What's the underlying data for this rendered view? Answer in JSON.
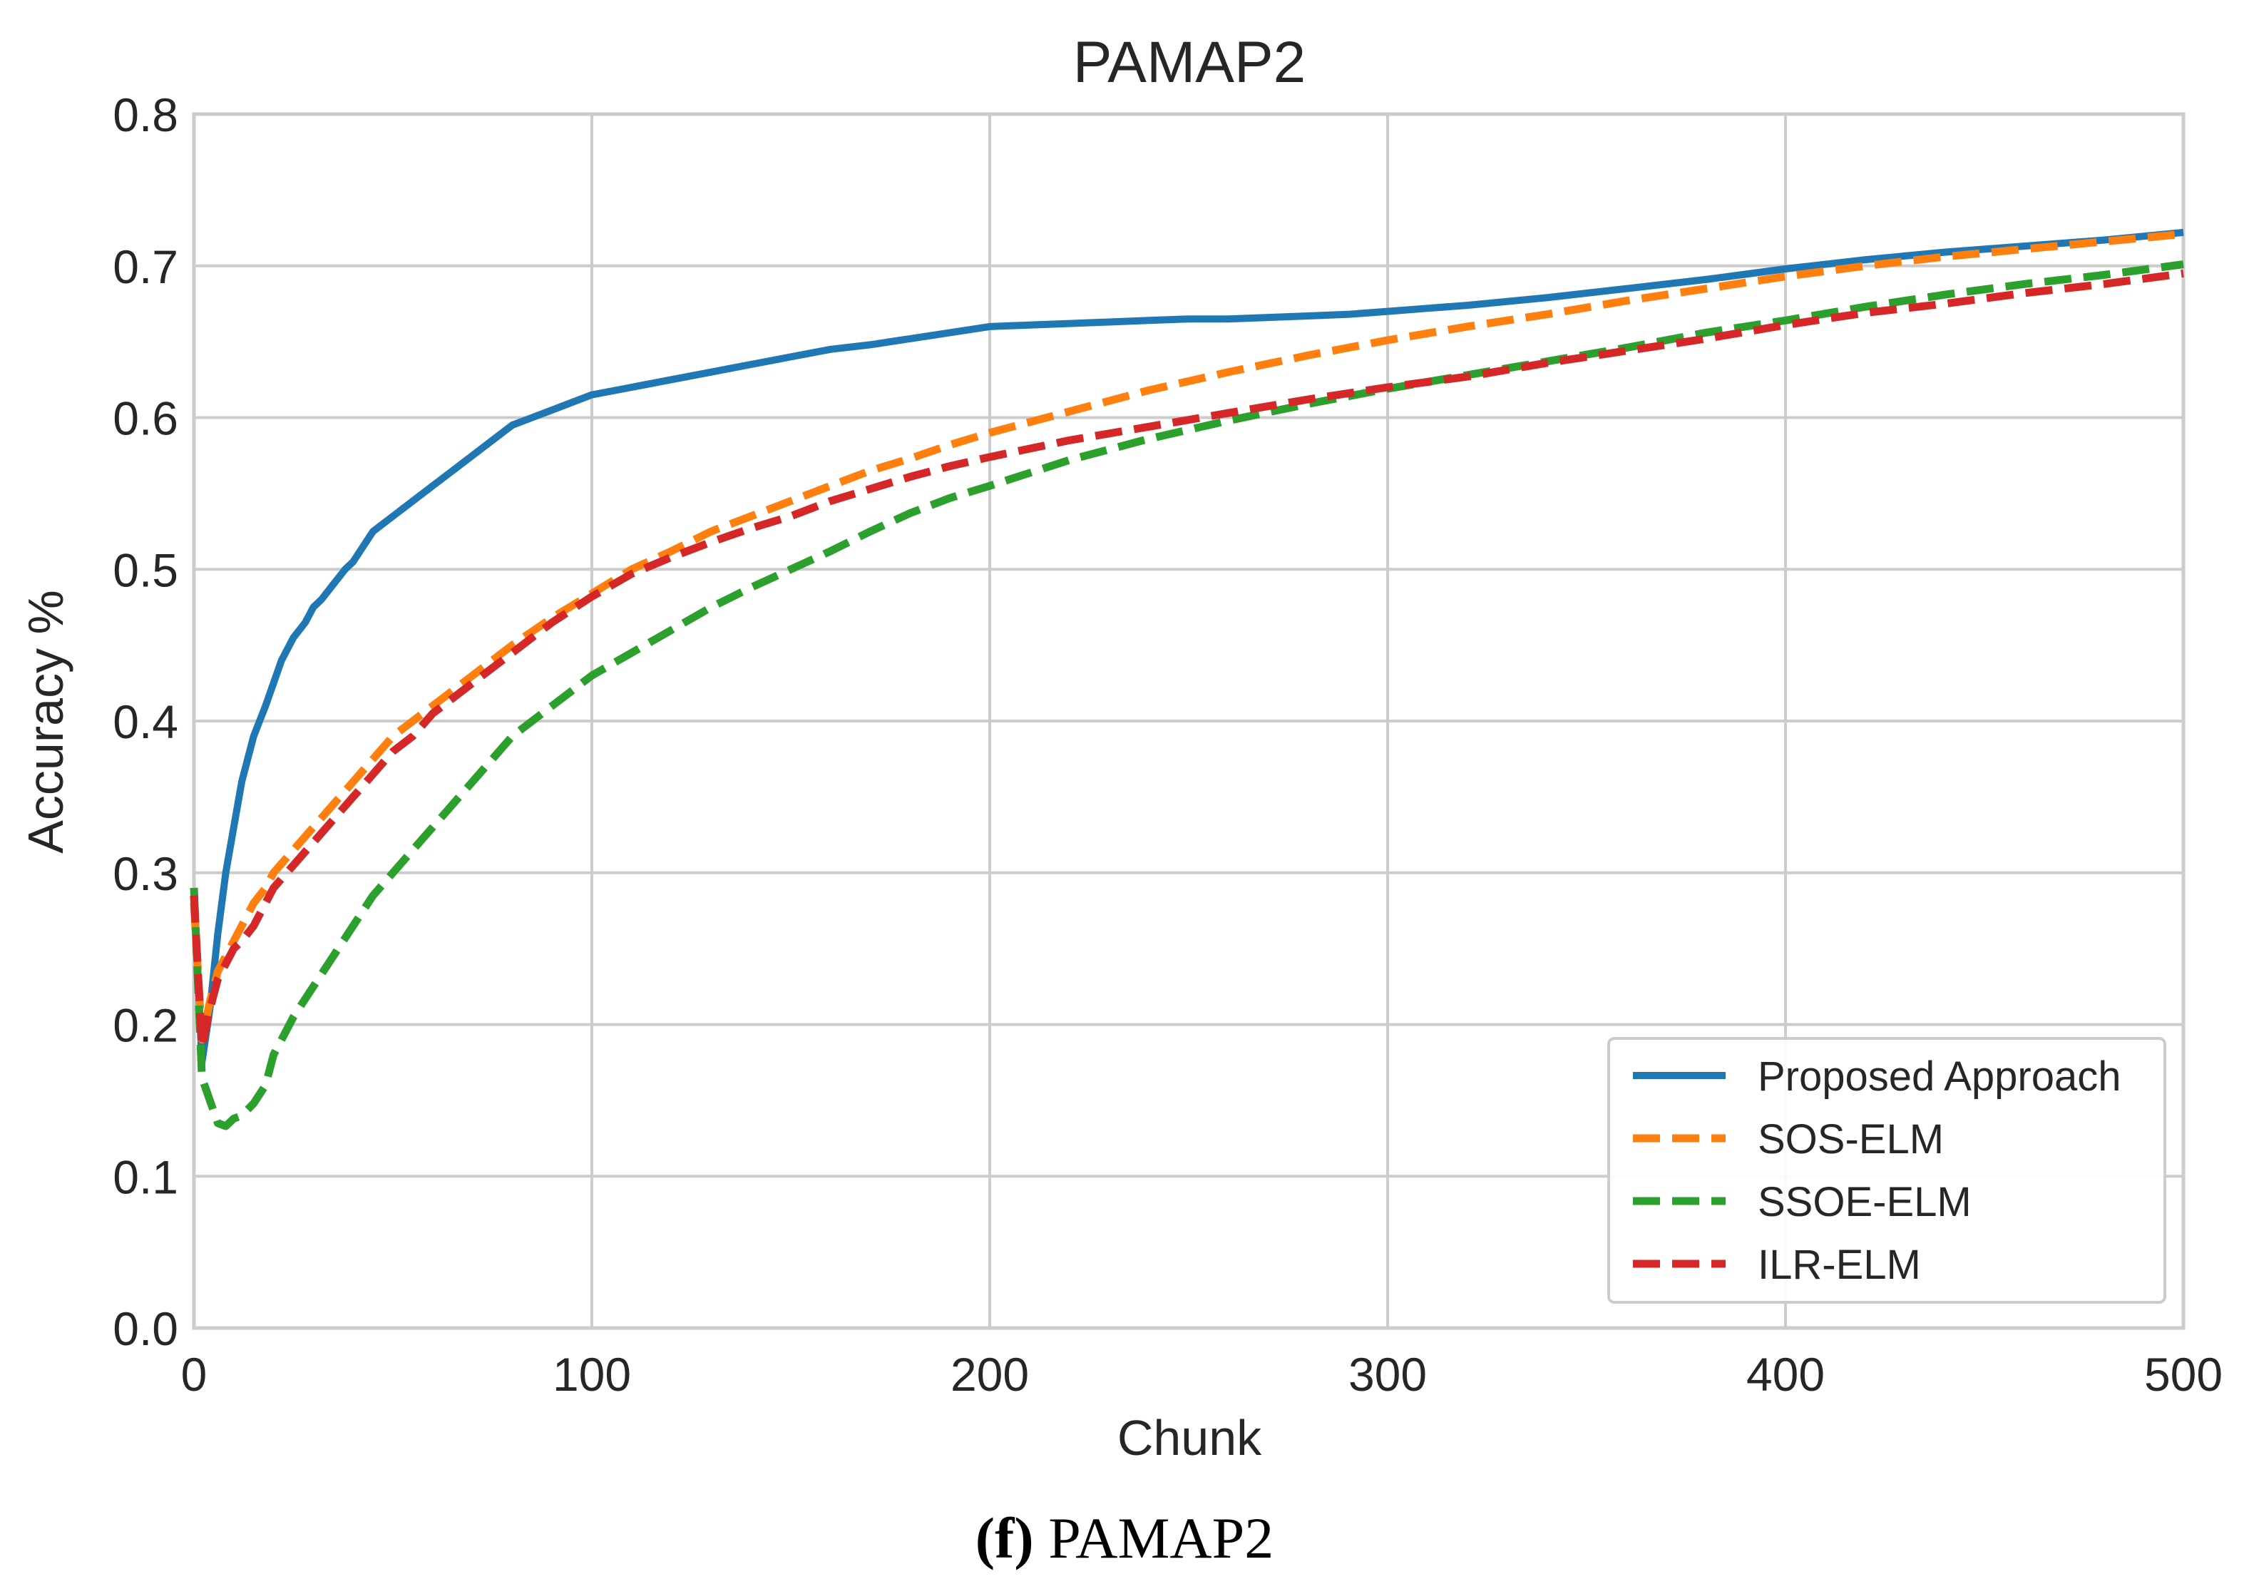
{
  "chart_data": {
    "type": "line",
    "title": "PAMAP2",
    "xlabel": "Chunk",
    "ylabel": "Accuracy %",
    "xlim": [
      0,
      500
    ],
    "ylim": [
      0.0,
      0.8
    ],
    "xticks": [
      0,
      100,
      200,
      300,
      400,
      500
    ],
    "yticks": [
      0.0,
      0.1,
      0.2,
      0.3,
      0.4,
      0.5,
      0.6,
      0.7,
      0.8
    ],
    "xtick_labels": [
      "0",
      "100",
      "200",
      "300",
      "400",
      "500"
    ],
    "ytick_labels": [
      "0.0",
      "0.1",
      "0.2",
      "0.3",
      "0.4",
      "0.5",
      "0.6",
      "0.7",
      "0.8"
    ],
    "grid": true,
    "legend_position": "bottom-right",
    "series": [
      {
        "name": "Proposed Approach",
        "color": "#1f77b4",
        "style": "solid",
        "x": [
          0,
          2,
          4,
          6,
          8,
          10,
          12,
          15,
          18,
          20,
          22,
          25,
          28,
          30,
          32,
          35,
          38,
          40,
          45,
          50,
          55,
          60,
          65,
          70,
          75,
          80,
          85,
          90,
          95,
          100,
          110,
          120,
          130,
          140,
          150,
          160,
          170,
          180,
          190,
          200,
          210,
          220,
          230,
          240,
          250,
          260,
          270,
          280,
          290,
          300,
          310,
          320,
          340,
          360,
          380,
          400,
          420,
          440,
          460,
          480,
          500
        ],
        "y": [
          0.29,
          0.175,
          0.21,
          0.26,
          0.3,
          0.33,
          0.36,
          0.39,
          0.41,
          0.425,
          0.44,
          0.455,
          0.465,
          0.475,
          0.48,
          0.49,
          0.5,
          0.505,
          0.525,
          0.535,
          0.545,
          0.555,
          0.565,
          0.575,
          0.585,
          0.595,
          0.6,
          0.605,
          0.61,
          0.615,
          0.62,
          0.625,
          0.63,
          0.635,
          0.64,
          0.645,
          0.648,
          0.652,
          0.656,
          0.66,
          0.661,
          0.662,
          0.663,
          0.664,
          0.665,
          0.665,
          0.666,
          0.667,
          0.668,
          0.67,
          0.672,
          0.674,
          0.679,
          0.685,
          0.691,
          0.698,
          0.704,
          0.709,
          0.713,
          0.717,
          0.722
        ]
      },
      {
        "name": "SOS-ELM",
        "color": "#ff7f0e",
        "style": "dashed",
        "x": [
          0,
          2,
          4,
          6,
          8,
          10,
          12,
          15,
          18,
          20,
          25,
          30,
          35,
          40,
          45,
          50,
          55,
          60,
          70,
          80,
          90,
          100,
          110,
          120,
          130,
          140,
          150,
          160,
          170,
          180,
          190,
          200,
          220,
          240,
          260,
          280,
          300,
          320,
          340,
          360,
          380,
          400,
          420,
          440,
          460,
          480,
          500
        ],
        "y": [
          0.28,
          0.19,
          0.215,
          0.235,
          0.245,
          0.255,
          0.265,
          0.28,
          0.29,
          0.3,
          0.315,
          0.33,
          0.345,
          0.36,
          0.375,
          0.39,
          0.4,
          0.41,
          0.43,
          0.45,
          0.468,
          0.484,
          0.5,
          0.512,
          0.525,
          0.535,
          0.545,
          0.555,
          0.565,
          0.573,
          0.582,
          0.59,
          0.604,
          0.618,
          0.63,
          0.641,
          0.651,
          0.66,
          0.668,
          0.677,
          0.685,
          0.693,
          0.7,
          0.706,
          0.711,
          0.716,
          0.721
        ]
      },
      {
        "name": "SSOE-ELM",
        "color": "#2ca02c",
        "style": "dashed",
        "x": [
          0,
          2,
          4,
          6,
          8,
          10,
          12,
          15,
          18,
          20,
          22,
          25,
          30,
          35,
          40,
          45,
          50,
          55,
          60,
          70,
          80,
          90,
          100,
          110,
          120,
          130,
          140,
          150,
          160,
          170,
          180,
          190,
          200,
          220,
          240,
          260,
          280,
          300,
          320,
          340,
          360,
          380,
          400,
          420,
          440,
          460,
          480,
          500
        ],
        "y": [
          0.29,
          0.165,
          0.15,
          0.135,
          0.133,
          0.138,
          0.14,
          0.148,
          0.16,
          0.18,
          0.19,
          0.205,
          0.225,
          0.245,
          0.265,
          0.285,
          0.3,
          0.315,
          0.33,
          0.36,
          0.39,
          0.41,
          0.43,
          0.445,
          0.46,
          0.475,
          0.488,
          0.5,
          0.512,
          0.525,
          0.537,
          0.547,
          0.555,
          0.572,
          0.586,
          0.598,
          0.609,
          0.619,
          0.628,
          0.637,
          0.646,
          0.656,
          0.664,
          0.673,
          0.681,
          0.688,
          0.694,
          0.701
        ]
      },
      {
        "name": "ILR-ELM",
        "color": "#d62728",
        "style": "dashed",
        "x": [
          0,
          2,
          4,
          6,
          8,
          10,
          12,
          15,
          18,
          20,
          25,
          30,
          35,
          40,
          45,
          50,
          55,
          60,
          70,
          80,
          90,
          100,
          110,
          120,
          130,
          140,
          150,
          160,
          170,
          180,
          190,
          200,
          220,
          240,
          260,
          280,
          300,
          320,
          340,
          360,
          380,
          400,
          420,
          440,
          460,
          480,
          500
        ],
        "y": [
          0.285,
          0.185,
          0.21,
          0.23,
          0.24,
          0.25,
          0.255,
          0.265,
          0.28,
          0.29,
          0.305,
          0.32,
          0.335,
          0.35,
          0.365,
          0.38,
          0.39,
          0.405,
          0.425,
          0.445,
          0.465,
          0.482,
          0.497,
          0.508,
          0.518,
          0.527,
          0.535,
          0.545,
          0.553,
          0.561,
          0.568,
          0.574,
          0.585,
          0.594,
          0.603,
          0.612,
          0.62,
          0.627,
          0.636,
          0.644,
          0.652,
          0.661,
          0.669,
          0.675,
          0.682,
          0.688,
          0.695
        ]
      }
    ]
  },
  "caption": {
    "letter": "(f)",
    "text": "PAMAP2"
  }
}
